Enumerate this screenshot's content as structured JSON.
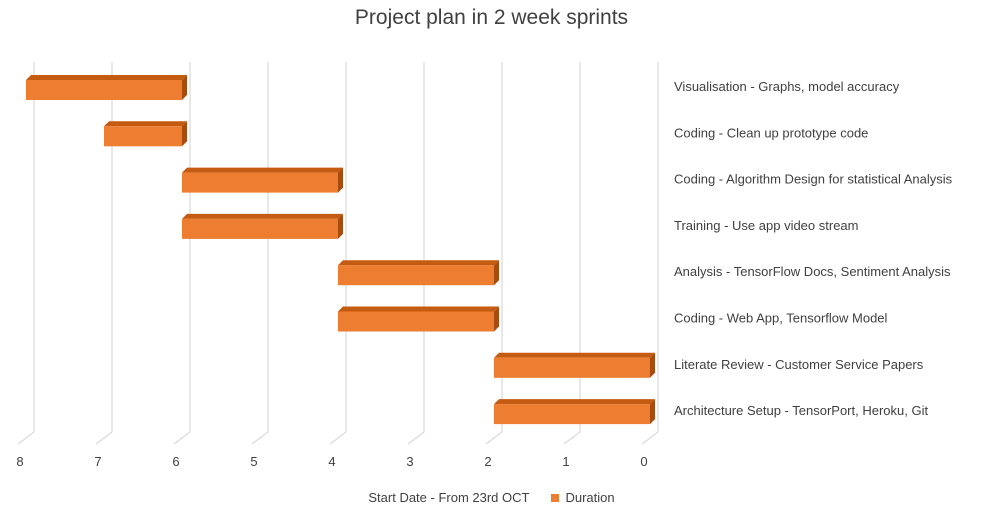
{
  "chart_data": {
    "type": "bar",
    "orientation": "horizontal",
    "style": "3d-gantt",
    "title": "Project plan in 2 week sprints",
    "x_axis": {
      "reversed": true,
      "range": [
        0,
        8
      ],
      "ticks": [
        "0",
        "1",
        "2",
        "3",
        "4",
        "5",
        "6",
        "7",
        "8"
      ],
      "gridlines": true
    },
    "categories": [
      "Architecture Setup - TensorPort, Heroku, Git",
      "Literate Review - Customer Service Papers",
      "Coding -  Web App, Tensorflow Model",
      "Analysis - TensorFlow Docs, Sentiment Analysis",
      "Training - Use app video stream",
      "Coding - Algorithm Design for statistical Analysis",
      "Coding - Clean up prototype code",
      "Visualisation - Graphs, model accuracy"
    ],
    "series": [
      {
        "name": "Start Date - From 23rd OCT",
        "values": [
          0,
          0,
          2,
          2,
          4,
          4,
          6,
          6
        ],
        "color": "none"
      },
      {
        "name": "Duration",
        "values": [
          2,
          2,
          2,
          2,
          2,
          2,
          1,
          2
        ],
        "color": "#ED7D31"
      }
    ],
    "legend": {
      "position": "bottom"
    }
  },
  "colors": {
    "bar_front": "#ED7D31",
    "bar_top": "#C55A11",
    "bar_side": "#A94B0E",
    "grid": "#D9D9D9",
    "text": "#404040"
  }
}
